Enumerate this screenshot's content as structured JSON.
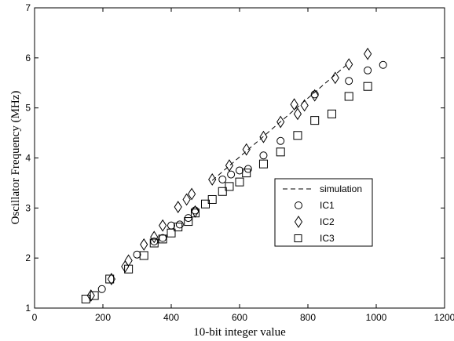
{
  "chart_data": {
    "type": "scatter",
    "xlabel": "10-bit integer value",
    "ylabel": "Oscillator Frequency (MHz)",
    "xlim": [
      0,
      1200
    ],
    "ylim": [
      1,
      7
    ],
    "xticks": [
      0,
      200,
      400,
      600,
      800,
      1000,
      1200
    ],
    "yticks": [
      1,
      2,
      3,
      4,
      5,
      6,
      7
    ],
    "grid": false,
    "legend_position": "center-right",
    "series": [
      {
        "name": "simulation",
        "style": "dashed-line",
        "color": "#000000",
        "x": [
          520,
          920
        ],
        "y": [
          3.55,
          5.9
        ]
      },
      {
        "name": "IC1",
        "marker": "circle",
        "color": "#000000",
        "x": [
          197,
          300,
          350,
          375,
          400,
          425,
          450,
          470,
          550,
          575,
          600,
          625,
          670,
          720,
          820,
          920,
          975,
          1020
        ],
        "y": [
          1.38,
          2.07,
          2.33,
          2.4,
          2.65,
          2.67,
          2.8,
          2.95,
          3.57,
          3.67,
          3.75,
          3.78,
          4.05,
          4.34,
          5.27,
          5.54,
          5.75,
          5.86
        ]
      },
      {
        "name": "IC2",
        "marker": "diamond",
        "color": "#000000",
        "x": [
          165,
          225,
          265,
          275,
          320,
          350,
          375,
          420,
          445,
          460,
          470,
          520,
          570,
          620,
          670,
          720,
          760,
          770,
          790,
          820,
          880,
          920,
          975
        ],
        "y": [
          1.25,
          1.58,
          1.83,
          1.95,
          2.27,
          2.42,
          2.65,
          3.02,
          3.17,
          3.28,
          2.93,
          3.57,
          3.85,
          4.17,
          4.42,
          4.72,
          5.07,
          4.88,
          5.05,
          5.25,
          5.6,
          5.87,
          6.08
        ]
      },
      {
        "name": "IC3",
        "marker": "square",
        "color": "#000000",
        "x": [
          150,
          175,
          220,
          275,
          320,
          350,
          375,
          400,
          420,
          450,
          470,
          500,
          520,
          550,
          570,
          600,
          620,
          670,
          720,
          770,
          820,
          870,
          920,
          975
        ],
        "y": [
          1.18,
          1.25,
          1.58,
          1.78,
          2.05,
          2.3,
          2.38,
          2.5,
          2.62,
          2.73,
          2.9,
          3.08,
          3.17,
          3.33,
          3.43,
          3.52,
          3.7,
          3.88,
          4.12,
          4.45,
          4.75,
          4.88,
          5.23,
          5.43
        ]
      }
    ]
  }
}
